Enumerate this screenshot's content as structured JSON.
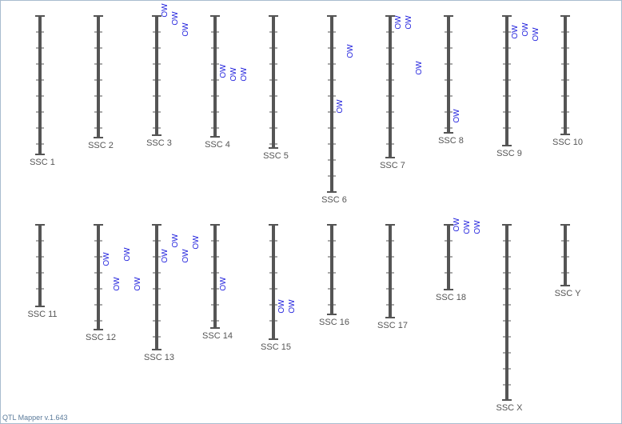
{
  "chromosomes": [
    {
      "label": "SSC 1",
      "markers": []
    },
    {
      "label": "SSC 2",
      "markers": []
    },
    {
      "label": "SSC 3",
      "markers": [
        "OW",
        "OW",
        "OW"
      ]
    },
    {
      "label": "SSC 4",
      "markers": [
        "OW",
        "OW",
        "OW"
      ]
    },
    {
      "label": "SSC 5",
      "markers": []
    },
    {
      "label": "SSC 6",
      "markers": [
        "OW",
        "OW"
      ]
    },
    {
      "label": "SSC 7",
      "markers": [
        "OW",
        "OW",
        "OW"
      ]
    },
    {
      "label": "SSC 8",
      "markers": [
        "OW"
      ]
    },
    {
      "label": "SSC 9",
      "markers": [
        "OW",
        "OW",
        "OW"
      ]
    },
    {
      "label": "SSC 10",
      "markers": []
    },
    {
      "label": "SSC 11",
      "markers": []
    },
    {
      "label": "SSC 12",
      "markers": [
        "OW",
        "OW",
        "OW",
        "OW"
      ]
    },
    {
      "label": "SSC 13",
      "markers": [
        "OW",
        "OW",
        "OW",
        "OW"
      ]
    },
    {
      "label": "SSC 14",
      "markers": [
        "OW"
      ]
    },
    {
      "label": "SSC 15",
      "markers": [
        "OW",
        "OW"
      ]
    },
    {
      "label": "SSC 16",
      "markers": []
    },
    {
      "label": "SSC 17",
      "markers": []
    },
    {
      "label": "SSC 18",
      "markers": [
        "OW",
        "OW",
        "OW"
      ]
    },
    {
      "label": "SSC X",
      "markers": []
    },
    {
      "label": "SSC Y",
      "markers": []
    }
  ],
  "footer": "QTL Mapper v.1.643"
}
